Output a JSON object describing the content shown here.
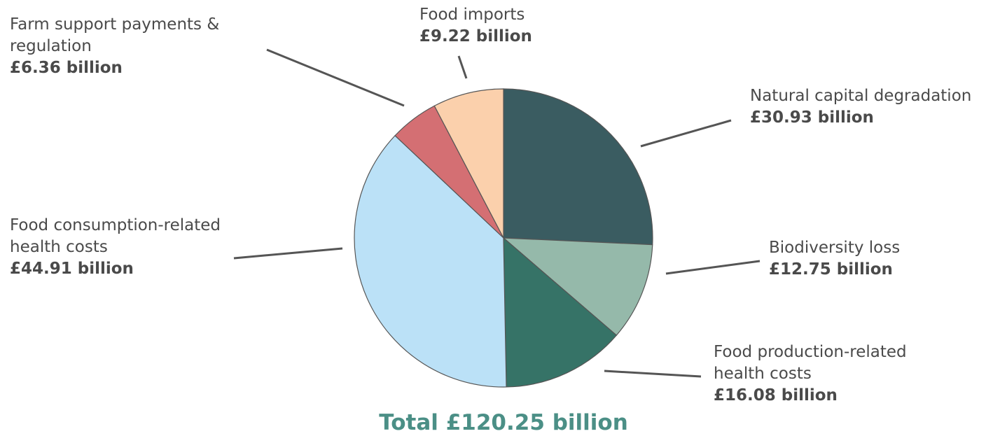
{
  "chart_data": {
    "type": "pie",
    "total_label": "Total £120.25 billion",
    "slices": [
      {
        "name": "Natural capital degradation",
        "value_label": "£30.93 billion",
        "value": 30.93,
        "color": "#3a5c61"
      },
      {
        "name": "Biodiversity loss",
        "value_label": "£12.75 billion",
        "value": 12.75,
        "color": "#95b9aa"
      },
      {
        "name": "Food production-related health costs",
        "value_label": "£16.08 billion",
        "value": 16.08,
        "color": "#367367"
      },
      {
        "name": "Food consumption-related health costs",
        "value_label": "£44.91 billion",
        "value": 44.91,
        "color": "#bbe1f7"
      },
      {
        "name": "Farm support payments & regulation",
        "value_label": "£6.36 billion",
        "value": 6.36,
        "color": "#d46f73"
      },
      {
        "name": "Food imports",
        "value_label": "£9.22 billion",
        "value": 9.22,
        "color": "#fbd0ac"
      }
    ]
  }
}
